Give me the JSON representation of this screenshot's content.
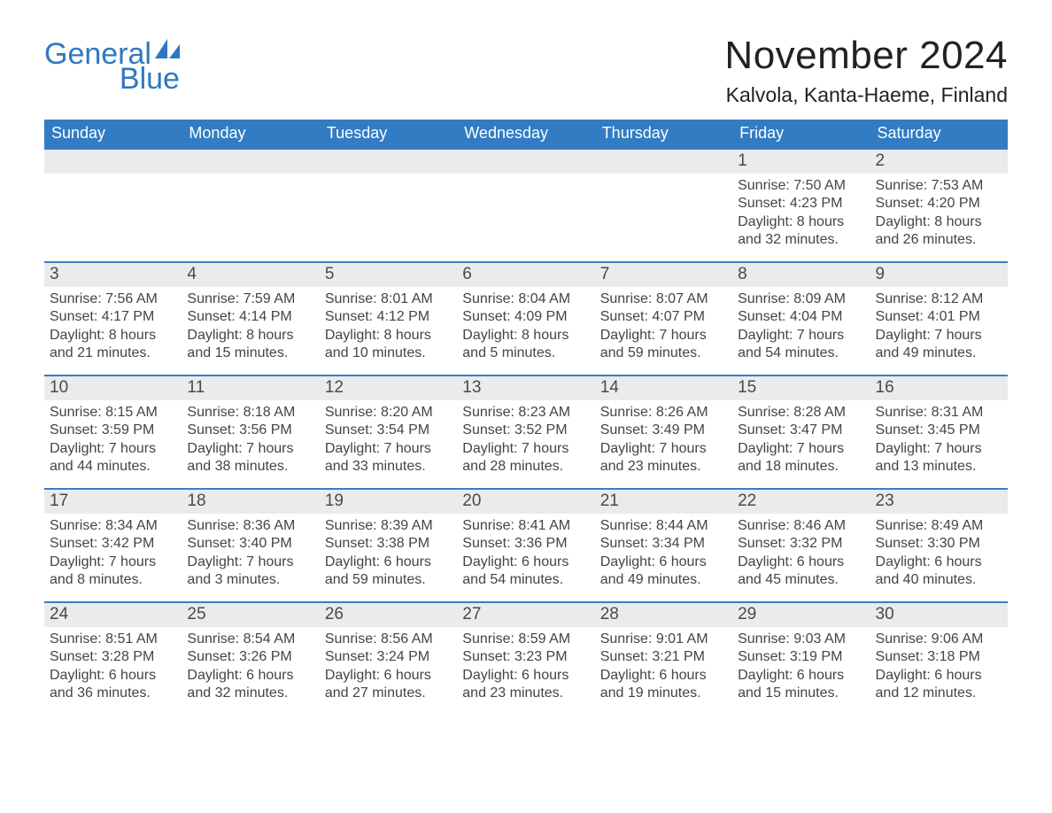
{
  "brand": {
    "line1": "General",
    "line2": "Blue",
    "color": "#2f78c1"
  },
  "title": "November 2024",
  "location": "Kalvola, Kanta-Haeme, Finland",
  "colors": {
    "header_bg": "#317cc3",
    "header_fg": "#ffffff",
    "date_strip_bg": "#e9ebed",
    "date_strip_border": "#3b7ec1",
    "page_bg": "#ffffff",
    "body_text": "#444444"
  },
  "weekdays": [
    "Sunday",
    "Monday",
    "Tuesday",
    "Wednesday",
    "Thursday",
    "Friday",
    "Saturday"
  ],
  "weeks": [
    [
      null,
      null,
      null,
      null,
      null,
      {
        "day": "1",
        "sunrise": "Sunrise: 7:50 AM",
        "sunset": "Sunset: 4:23 PM",
        "daylight1": "Daylight: 8 hours",
        "daylight2": "and 32 minutes."
      },
      {
        "day": "2",
        "sunrise": "Sunrise: 7:53 AM",
        "sunset": "Sunset: 4:20 PM",
        "daylight1": "Daylight: 8 hours",
        "daylight2": "and 26 minutes."
      }
    ],
    [
      {
        "day": "3",
        "sunrise": "Sunrise: 7:56 AM",
        "sunset": "Sunset: 4:17 PM",
        "daylight1": "Daylight: 8 hours",
        "daylight2": "and 21 minutes."
      },
      {
        "day": "4",
        "sunrise": "Sunrise: 7:59 AM",
        "sunset": "Sunset: 4:14 PM",
        "daylight1": "Daylight: 8 hours",
        "daylight2": "and 15 minutes."
      },
      {
        "day": "5",
        "sunrise": "Sunrise: 8:01 AM",
        "sunset": "Sunset: 4:12 PM",
        "daylight1": "Daylight: 8 hours",
        "daylight2": "and 10 minutes."
      },
      {
        "day": "6",
        "sunrise": "Sunrise: 8:04 AM",
        "sunset": "Sunset: 4:09 PM",
        "daylight1": "Daylight: 8 hours",
        "daylight2": "and 5 minutes."
      },
      {
        "day": "7",
        "sunrise": "Sunrise: 8:07 AM",
        "sunset": "Sunset: 4:07 PM",
        "daylight1": "Daylight: 7 hours",
        "daylight2": "and 59 minutes."
      },
      {
        "day": "8",
        "sunrise": "Sunrise: 8:09 AM",
        "sunset": "Sunset: 4:04 PM",
        "daylight1": "Daylight: 7 hours",
        "daylight2": "and 54 minutes."
      },
      {
        "day": "9",
        "sunrise": "Sunrise: 8:12 AM",
        "sunset": "Sunset: 4:01 PM",
        "daylight1": "Daylight: 7 hours",
        "daylight2": "and 49 minutes."
      }
    ],
    [
      {
        "day": "10",
        "sunrise": "Sunrise: 8:15 AM",
        "sunset": "Sunset: 3:59 PM",
        "daylight1": "Daylight: 7 hours",
        "daylight2": "and 44 minutes."
      },
      {
        "day": "11",
        "sunrise": "Sunrise: 8:18 AM",
        "sunset": "Sunset: 3:56 PM",
        "daylight1": "Daylight: 7 hours",
        "daylight2": "and 38 minutes."
      },
      {
        "day": "12",
        "sunrise": "Sunrise: 8:20 AM",
        "sunset": "Sunset: 3:54 PM",
        "daylight1": "Daylight: 7 hours",
        "daylight2": "and 33 minutes."
      },
      {
        "day": "13",
        "sunrise": "Sunrise: 8:23 AM",
        "sunset": "Sunset: 3:52 PM",
        "daylight1": "Daylight: 7 hours",
        "daylight2": "and 28 minutes."
      },
      {
        "day": "14",
        "sunrise": "Sunrise: 8:26 AM",
        "sunset": "Sunset: 3:49 PM",
        "daylight1": "Daylight: 7 hours",
        "daylight2": "and 23 minutes."
      },
      {
        "day": "15",
        "sunrise": "Sunrise: 8:28 AM",
        "sunset": "Sunset: 3:47 PM",
        "daylight1": "Daylight: 7 hours",
        "daylight2": "and 18 minutes."
      },
      {
        "day": "16",
        "sunrise": "Sunrise: 8:31 AM",
        "sunset": "Sunset: 3:45 PM",
        "daylight1": "Daylight: 7 hours",
        "daylight2": "and 13 minutes."
      }
    ],
    [
      {
        "day": "17",
        "sunrise": "Sunrise: 8:34 AM",
        "sunset": "Sunset: 3:42 PM",
        "daylight1": "Daylight: 7 hours",
        "daylight2": "and 8 minutes."
      },
      {
        "day": "18",
        "sunrise": "Sunrise: 8:36 AM",
        "sunset": "Sunset: 3:40 PM",
        "daylight1": "Daylight: 7 hours",
        "daylight2": "and 3 minutes."
      },
      {
        "day": "19",
        "sunrise": "Sunrise: 8:39 AM",
        "sunset": "Sunset: 3:38 PM",
        "daylight1": "Daylight: 6 hours",
        "daylight2": "and 59 minutes."
      },
      {
        "day": "20",
        "sunrise": "Sunrise: 8:41 AM",
        "sunset": "Sunset: 3:36 PM",
        "daylight1": "Daylight: 6 hours",
        "daylight2": "and 54 minutes."
      },
      {
        "day": "21",
        "sunrise": "Sunrise: 8:44 AM",
        "sunset": "Sunset: 3:34 PM",
        "daylight1": "Daylight: 6 hours",
        "daylight2": "and 49 minutes."
      },
      {
        "day": "22",
        "sunrise": "Sunrise: 8:46 AM",
        "sunset": "Sunset: 3:32 PM",
        "daylight1": "Daylight: 6 hours",
        "daylight2": "and 45 minutes."
      },
      {
        "day": "23",
        "sunrise": "Sunrise: 8:49 AM",
        "sunset": "Sunset: 3:30 PM",
        "daylight1": "Daylight: 6 hours",
        "daylight2": "and 40 minutes."
      }
    ],
    [
      {
        "day": "24",
        "sunrise": "Sunrise: 8:51 AM",
        "sunset": "Sunset: 3:28 PM",
        "daylight1": "Daylight: 6 hours",
        "daylight2": "and 36 minutes."
      },
      {
        "day": "25",
        "sunrise": "Sunrise: 8:54 AM",
        "sunset": "Sunset: 3:26 PM",
        "daylight1": "Daylight: 6 hours",
        "daylight2": "and 32 minutes."
      },
      {
        "day": "26",
        "sunrise": "Sunrise: 8:56 AM",
        "sunset": "Sunset: 3:24 PM",
        "daylight1": "Daylight: 6 hours",
        "daylight2": "and 27 minutes."
      },
      {
        "day": "27",
        "sunrise": "Sunrise: 8:59 AM",
        "sunset": "Sunset: 3:23 PM",
        "daylight1": "Daylight: 6 hours",
        "daylight2": "and 23 minutes."
      },
      {
        "day": "28",
        "sunrise": "Sunrise: 9:01 AM",
        "sunset": "Sunset: 3:21 PM",
        "daylight1": "Daylight: 6 hours",
        "daylight2": "and 19 minutes."
      },
      {
        "day": "29",
        "sunrise": "Sunrise: 9:03 AM",
        "sunset": "Sunset: 3:19 PM",
        "daylight1": "Daylight: 6 hours",
        "daylight2": "and 15 minutes."
      },
      {
        "day": "30",
        "sunrise": "Sunrise: 9:06 AM",
        "sunset": "Sunset: 3:18 PM",
        "daylight1": "Daylight: 6 hours",
        "daylight2": "and 12 minutes."
      }
    ]
  ]
}
